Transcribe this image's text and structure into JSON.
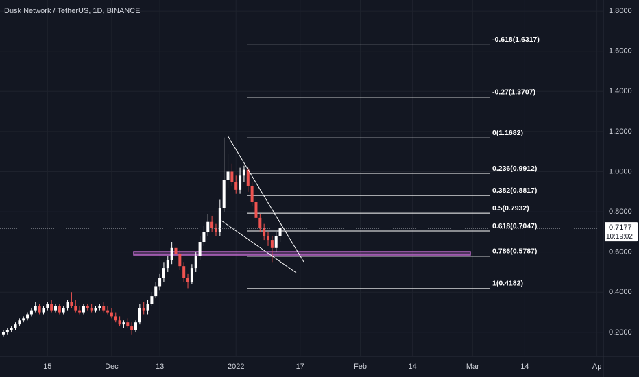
{
  "chart_data": {
    "type": "candlestick",
    "title": "Dusk Network / TetherUS, 1D, BINANCE",
    "up_color": "#ffffff",
    "down_color": "#ef5350",
    "open": [
      0.19,
      0.2,
      0.21,
      0.22,
      0.24,
      0.26,
      0.27,
      0.29,
      0.31,
      0.33,
      0.3,
      0.32,
      0.34,
      0.31,
      0.33,
      0.3,
      0.32,
      0.35,
      0.33,
      0.31,
      0.3,
      0.33,
      0.32,
      0.31,
      0.32,
      0.33,
      0.31,
      0.3,
      0.28,
      0.26,
      0.24,
      0.25,
      0.23,
      0.21,
      0.25,
      0.32,
      0.31,
      0.34,
      0.38,
      0.43,
      0.47,
      0.52,
      0.56,
      0.62,
      0.59,
      0.53,
      0.47,
      0.45,
      0.52,
      0.58,
      0.65,
      0.7,
      0.75,
      0.72,
      0.7,
      0.82,
      0.96,
      1.0,
      0.95,
      0.91,
      0.98,
      1.01,
      0.93,
      0.85,
      0.77,
      0.72,
      0.68,
      0.66,
      0.62,
      0.68
    ],
    "high": [
      0.21,
      0.22,
      0.23,
      0.25,
      0.27,
      0.28,
      0.3,
      0.32,
      0.35,
      0.34,
      0.33,
      0.35,
      0.36,
      0.34,
      0.34,
      0.33,
      0.36,
      0.4,
      0.36,
      0.33,
      0.34,
      0.34,
      0.34,
      0.33,
      0.34,
      0.35,
      0.33,
      0.32,
      0.3,
      0.28,
      0.26,
      0.27,
      0.25,
      0.26,
      0.34,
      0.35,
      0.36,
      0.4,
      0.45,
      0.49,
      0.55,
      0.58,
      0.65,
      0.64,
      0.61,
      0.55,
      0.49,
      0.54,
      0.6,
      0.68,
      0.73,
      0.79,
      0.78,
      0.74,
      0.86,
      1.17,
      1.09,
      1.04,
      0.98,
      1.02,
      1.03,
      1.02,
      0.95,
      0.87,
      0.79,
      0.74,
      0.7,
      0.68,
      0.7,
      0.74
    ],
    "low": [
      0.18,
      0.19,
      0.2,
      0.21,
      0.23,
      0.25,
      0.26,
      0.28,
      0.3,
      0.29,
      0.29,
      0.31,
      0.3,
      0.3,
      0.29,
      0.29,
      0.31,
      0.32,
      0.3,
      0.29,
      0.29,
      0.31,
      0.3,
      0.3,
      0.31,
      0.3,
      0.29,
      0.27,
      0.25,
      0.23,
      0.22,
      0.22,
      0.19,
      0.2,
      0.24,
      0.29,
      0.29,
      0.33,
      0.37,
      0.41,
      0.45,
      0.5,
      0.54,
      0.57,
      0.51,
      0.45,
      0.42,
      0.44,
      0.5,
      0.56,
      0.63,
      0.68,
      0.7,
      0.68,
      0.68,
      0.8,
      0.92,
      0.93,
      0.89,
      0.89,
      0.95,
      0.9,
      0.83,
      0.75,
      0.7,
      0.66,
      0.63,
      0.55,
      0.6,
      0.65
    ],
    "close": [
      0.2,
      0.21,
      0.22,
      0.24,
      0.26,
      0.27,
      0.29,
      0.31,
      0.33,
      0.3,
      0.32,
      0.34,
      0.31,
      0.33,
      0.3,
      0.32,
      0.35,
      0.33,
      0.31,
      0.3,
      0.33,
      0.32,
      0.31,
      0.32,
      0.33,
      0.31,
      0.3,
      0.28,
      0.26,
      0.24,
      0.25,
      0.23,
      0.21,
      0.25,
      0.32,
      0.31,
      0.34,
      0.38,
      0.43,
      0.47,
      0.52,
      0.56,
      0.62,
      0.59,
      0.53,
      0.47,
      0.45,
      0.52,
      0.58,
      0.65,
      0.7,
      0.75,
      0.72,
      0.7,
      0.82,
      0.96,
      1.0,
      0.95,
      0.91,
      0.98,
      1.01,
      0.93,
      0.85,
      0.77,
      0.72,
      0.68,
      0.66,
      0.62,
      0.68,
      0.72
    ],
    "xlim": [
      -0.85,
      149.6
    ],
    "xticks": [
      {
        "value": 11,
        "label": "15"
      },
      {
        "value": 27,
        "label": "Dec"
      },
      {
        "value": 39,
        "label": "13"
      },
      {
        "value": 58,
        "label": "2022"
      },
      {
        "value": 74,
        "label": "17"
      },
      {
        "value": 89,
        "label": "Feb"
      },
      {
        "value": 102,
        "label": "14"
      },
      {
        "value": 117,
        "label": "Mar"
      },
      {
        "value": 130,
        "label": "14"
      },
      {
        "value": 148,
        "label": "Ap"
      }
    ],
    "ylim": [
      0.08,
      1.855
    ],
    "yticks": [
      {
        "value": 0.2,
        "label": "0.2000"
      },
      {
        "value": 0.4,
        "label": "0.4000"
      },
      {
        "value": 0.6,
        "label": "0.6000"
      },
      {
        "value": 0.8,
        "label": "0.8000"
      },
      {
        "value": 1.0,
        "label": "1.0000"
      },
      {
        "value": 1.2,
        "label": "1.2000"
      },
      {
        "value": 1.4,
        "label": "1.4000"
      },
      {
        "value": 1.6,
        "label": "1.6000"
      },
      {
        "value": 1.8,
        "label": "1.8000"
      }
    ],
    "grid": true,
    "fib_levels": [
      {
        "value": 1.6317,
        "label": "-0.618(1.6317)"
      },
      {
        "value": 1.3707,
        "label": "-0.27(1.3707)"
      },
      {
        "value": 1.1682,
        "label": "0(1.1682)"
      },
      {
        "value": 0.9912,
        "label": "0.236(0.9912)"
      },
      {
        "value": 0.8817,
        "label": "0.382(0.8817)"
      },
      {
        "value": 0.7932,
        "label": "0.5(0.7932)"
      },
      {
        "value": 0.7047,
        "label": "0.618(0.7047)"
      },
      {
        "value": 0.5787,
        "label": "0.786(0.5787)"
      },
      {
        "value": 0.4182,
        "label": "1(0.4182)"
      }
    ],
    "last_price": {
      "value": 0.7177,
      "label": "0.7177"
    },
    "countdown": "10:19:02"
  }
}
